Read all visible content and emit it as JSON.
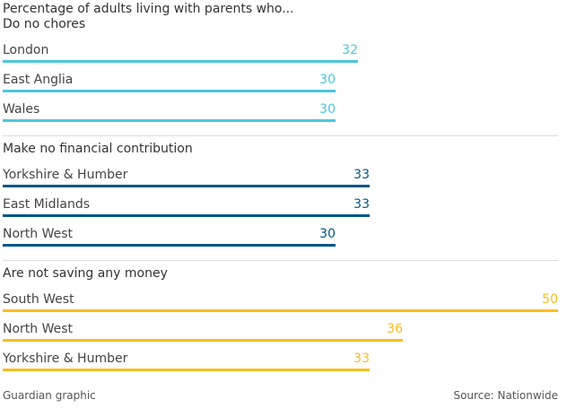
{
  "chart_data": {
    "type": "bar",
    "title": "Percentage of adults living with parents who...",
    "xlim": [
      0,
      50
    ],
    "groups": [
      {
        "title": "Do no chores",
        "color": "#4bc6df",
        "categories": [
          "London",
          "East Anglia",
          "Wales"
        ],
        "values": [
          32,
          30,
          30
        ]
      },
      {
        "title": "Make no financial contribution",
        "color": "#005689",
        "categories": [
          "Yorkshire & Humber",
          "East Midlands",
          "North West"
        ],
        "values": [
          33,
          33,
          30
        ]
      },
      {
        "title": "Are not saving any money",
        "color": "#fbbc1d",
        "categories": [
          "South West",
          "North West",
          "Yorkshire & Humber"
        ],
        "values": [
          50,
          36,
          33
        ]
      }
    ]
  },
  "footer": {
    "credit": "Guardian graphic",
    "source": "Source: Nationwide"
  }
}
